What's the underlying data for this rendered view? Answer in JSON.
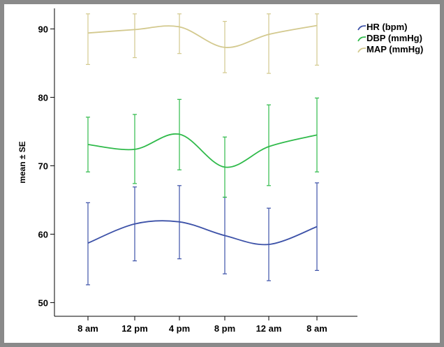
{
  "chart_data": {
    "type": "line",
    "title": "",
    "xlabel": "",
    "ylabel": "mean ± SE",
    "categories": [
      "8 am",
      "12 pm",
      "4 pm",
      "8 pm",
      "12 am",
      "8 am"
    ],
    "ylim": [
      48,
      93
    ],
    "yticks": [
      50,
      60,
      70,
      80,
      90
    ],
    "grid": false,
    "legend_position": "top-right",
    "series": [
      {
        "name": "HR (bpm)",
        "color": "#3d52a8",
        "values": [
          58.7,
          61.5,
          61.8,
          59.8,
          58.5,
          61.1
        ],
        "lower": [
          52.6,
          56.1,
          56.4,
          54.2,
          53.2,
          54.7
        ],
        "upper": [
          64.6,
          66.9,
          67.1,
          65.4,
          63.8,
          67.5
        ]
      },
      {
        "name": "DBP (mmHg)",
        "color": "#2fba4a",
        "values": [
          73.1,
          72.4,
          74.6,
          69.8,
          72.8,
          74.5
        ],
        "lower": [
          69.1,
          67.4,
          69.4,
          65.4,
          67.1,
          69.1
        ],
        "upper": [
          77.1,
          77.5,
          79.7,
          74.2,
          78.9,
          79.9
        ]
      },
      {
        "name": "MAP (mmHg)",
        "color": "#d3c98e",
        "values": [
          89.4,
          89.9,
          90.3,
          87.3,
          89.2,
          90.5
        ],
        "lower": [
          84.8,
          85.8,
          86.4,
          83.6,
          83.5,
          84.7
        ],
        "upper": [
          92.2,
          92.2,
          92.2,
          91.1,
          92.2,
          92.2
        ]
      }
    ]
  }
}
